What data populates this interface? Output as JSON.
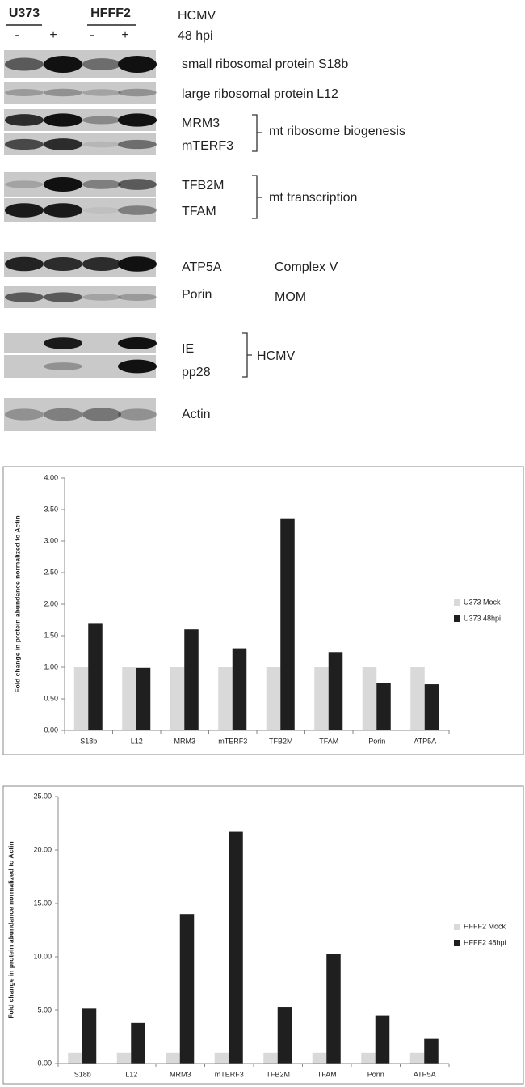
{
  "blot": {
    "cell_lines": [
      "U373",
      "HFFF2"
    ],
    "infection": "HCMV",
    "timepoint": "48 hpi",
    "lanes": [
      "-",
      "+",
      "-",
      "+"
    ],
    "proteins": [
      "small ribosomal protein S18b",
      "large ribosomal protein L12",
      "MRM3",
      "mTERF3",
      "TFB2M",
      "TFAM",
      "ATP5A",
      "Porin",
      "IE",
      "pp28",
      "Actin"
    ],
    "groups": [
      "mt ribosome biogenesis",
      "mt transcription",
      "Complex V",
      "MOM",
      "HCMV"
    ]
  },
  "chart_data": [
    {
      "type": "bar",
      "y_label": "Fold change in protein abundance normalized to Actin",
      "categories": [
        "S18b",
        "L12",
        "MRM3",
        "mTERF3",
        "TFB2M",
        "TFAM",
        "Porin",
        "ATP5A"
      ],
      "series": [
        {
          "name": "U373 Mock",
          "color": "#d9d9d9",
          "values": [
            1,
            1,
            1,
            1,
            1,
            1,
            1,
            1
          ]
        },
        {
          "name": "U373 48hpi",
          "color": "#1f1f1f",
          "values": [
            1.7,
            0.99,
            1.6,
            1.3,
            3.35,
            1.24,
            0.75,
            0.73
          ]
        }
      ],
      "ylim": [
        0,
        4
      ],
      "yticks": [
        {
          "value": 0,
          "label": "0.00"
        },
        {
          "value": 0.5,
          "label": "0.50"
        },
        {
          "value": 1,
          "label": "1.00"
        },
        {
          "value": 1.5,
          "label": "1.50"
        },
        {
          "value": 2,
          "label": "2.00"
        },
        {
          "value": 2.5,
          "label": "2.50"
        },
        {
          "value": 3,
          "label": "3.00"
        },
        {
          "value": 3.5,
          "label": "3.50"
        },
        {
          "value": 4,
          "label": "4.00"
        }
      ],
      "legend": "right"
    },
    {
      "type": "bar",
      "y_label": "Fold change in protein abundance normalized to Actin",
      "categories": [
        "S18b",
        "L12",
        "MRM3",
        "mTERF3",
        "TFB2M",
        "TFAM",
        "Porin",
        "ATP5A"
      ],
      "series": [
        {
          "name": "HFFF2 Mock",
          "color": "#d9d9d9",
          "values": [
            1,
            1,
            1,
            1,
            1,
            1,
            1,
            1
          ]
        },
        {
          "name": "HFFF2 48hpi",
          "color": "#1f1f1f",
          "values": [
            5.2,
            3.8,
            14.0,
            21.7,
            5.3,
            10.3,
            4.5,
            2.3
          ]
        }
      ],
      "ylim": [
        0,
        25
      ],
      "yticks": [
        {
          "value": 0,
          "label": "0.00"
        },
        {
          "value": 5,
          "label": "5.00"
        },
        {
          "value": 10,
          "label": "10.00"
        },
        {
          "value": 15,
          "label": "15.00"
        },
        {
          "value": 20,
          "label": "20.00"
        },
        {
          "value": 25,
          "label": "25.00"
        }
      ],
      "legend": "right"
    }
  ]
}
